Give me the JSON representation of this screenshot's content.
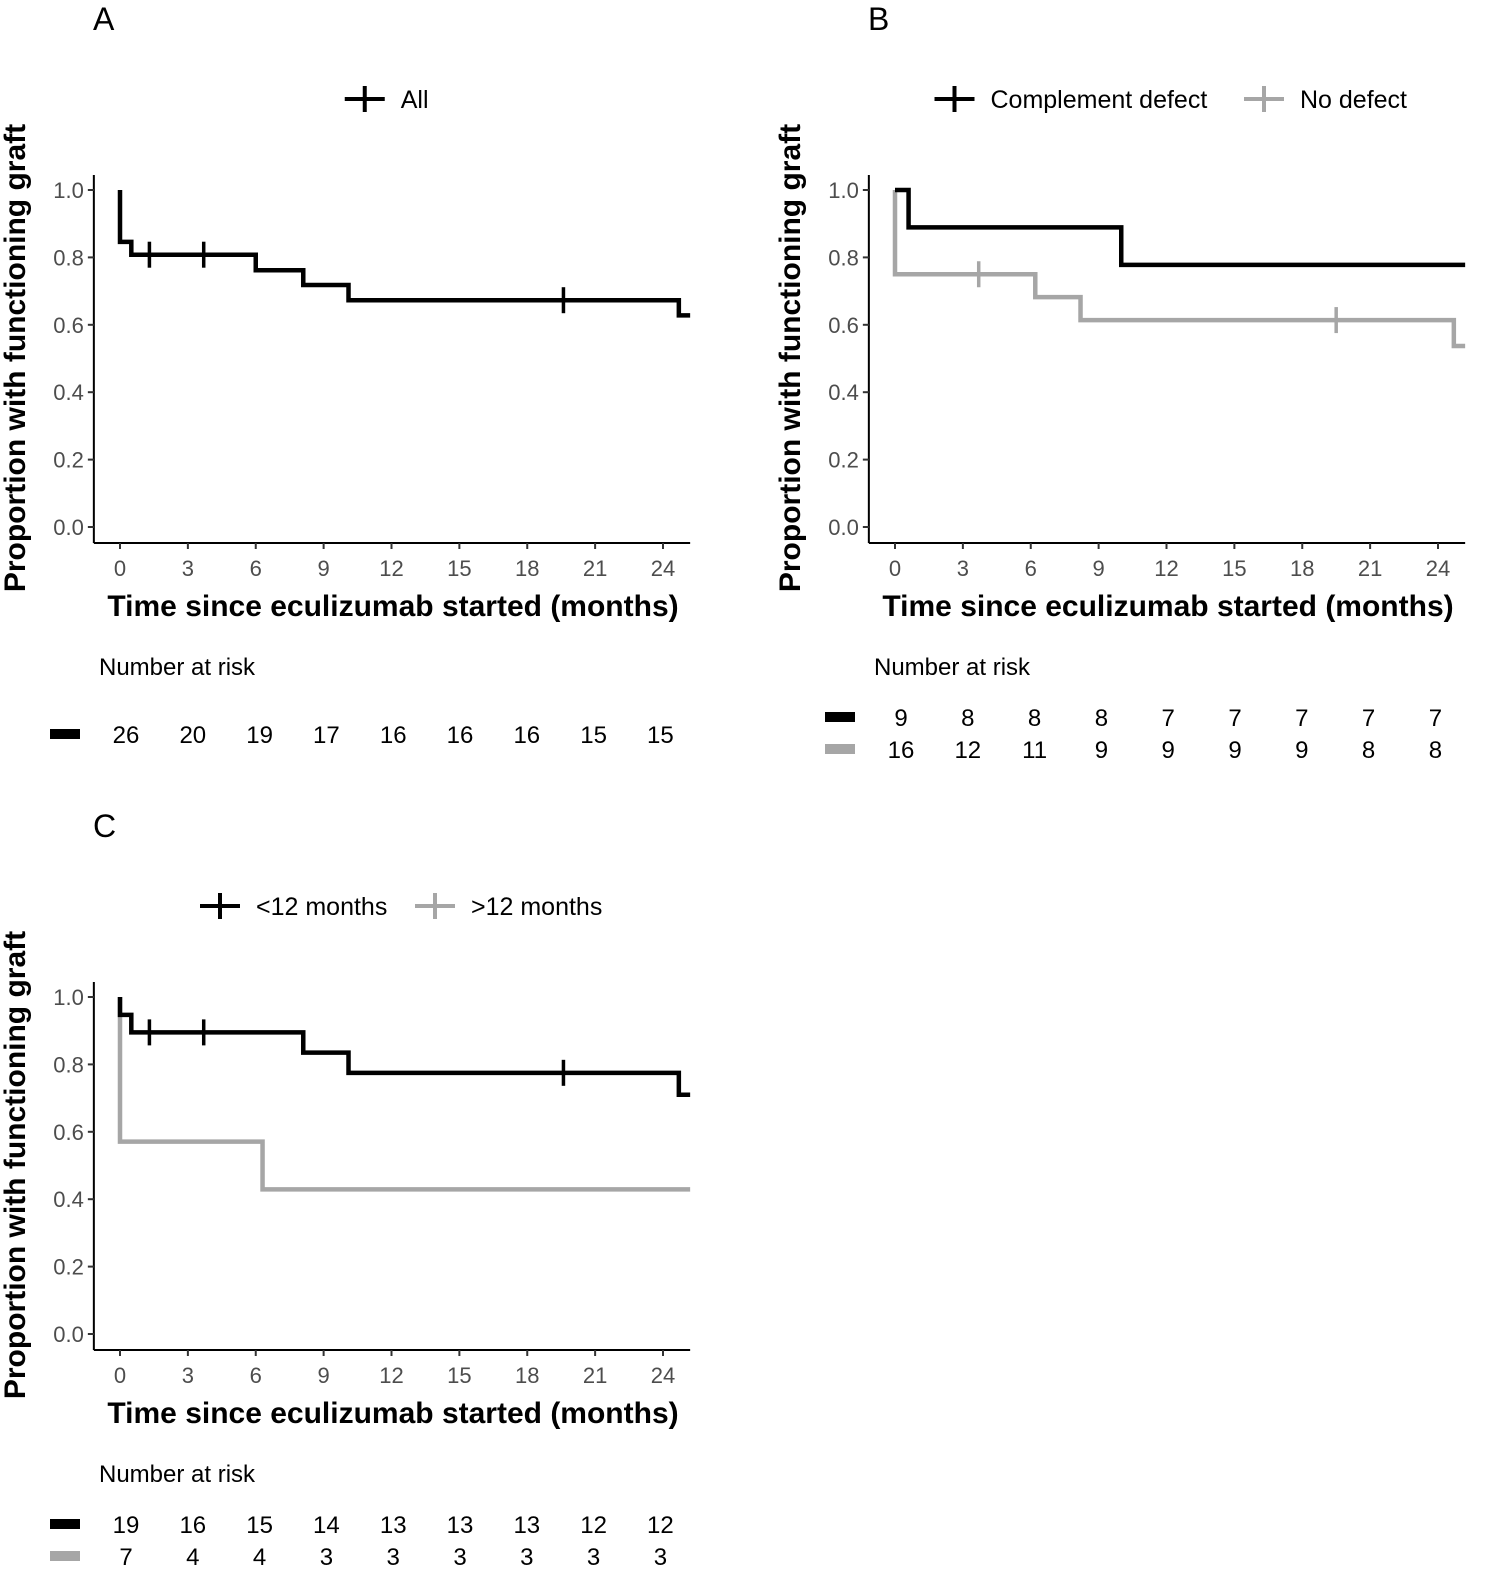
{
  "chart_data": [
    {
      "panel": "A",
      "type": "line",
      "subtype": "kaplan-meier step",
      "xlabel": "Time since eculizumab started (months)",
      "ylabel": "Proportion with functioning graft",
      "xticks": [
        "0",
        "3",
        "6",
        "9",
        "12",
        "15",
        "18",
        "21",
        "24"
      ],
      "yticks": [
        "0.0",
        "0.2",
        "0.4",
        "0.6",
        "0.8",
        "1.0"
      ],
      "xlim": [
        -1.2,
        25.2
      ],
      "ylim": [
        0,
        1
      ],
      "grid": false,
      "legend_position": "top",
      "risk_title": "Number at risk",
      "series": [
        {
          "name": "All",
          "color": "#000000",
          "steps": [
            [
              0,
              1.0
            ],
            [
              0,
              0.846
            ],
            [
              0.5,
              0.808
            ],
            [
              6.0,
              0.762
            ],
            [
              8.1,
              0.718
            ],
            [
              10.1,
              0.673
            ],
            [
              24.7,
              0.628
            ]
          ],
          "end": 25.2,
          "censored": [
            1.3,
            3.7,
            19.6
          ],
          "at_risk": [
            "26",
            "20",
            "19",
            "17",
            "16",
            "16",
            "16",
            "15",
            "15"
          ]
        }
      ]
    },
    {
      "panel": "B",
      "type": "line",
      "subtype": "kaplan-meier step",
      "xlabel": "Time since eculizumab started (months)",
      "ylabel": "Proportion with functioning graft",
      "xticks": [
        "0",
        "3",
        "6",
        "9",
        "12",
        "15",
        "18",
        "21",
        "24"
      ],
      "yticks": [
        "0.0",
        "0.2",
        "0.4",
        "0.6",
        "0.8",
        "1.0"
      ],
      "xlim": [
        -1.2,
        25.2
      ],
      "ylim": [
        0,
        1
      ],
      "grid": false,
      "legend_position": "top",
      "risk_title": "Number at risk",
      "series": [
        {
          "name": "Complement defect",
          "color": "#000000",
          "steps": [
            [
              0,
              1.0
            ],
            [
              0.6,
              0.889
            ],
            [
              10.0,
              0.778
            ]
          ],
          "end": 25.2,
          "censored": [],
          "at_risk": [
            "9",
            "8",
            "8",
            "8",
            "7",
            "7",
            "7",
            "7",
            "7"
          ]
        },
        {
          "name": "No defect",
          "color": "#a6a6a6",
          "steps": [
            [
              0,
              1.0
            ],
            [
              0,
              0.75
            ],
            [
              6.2,
              0.682
            ],
            [
              8.2,
              0.614
            ],
            [
              24.7,
              0.537
            ]
          ],
          "end": 25.2,
          "censored": [
            3.7,
            19.5
          ],
          "at_risk": [
            "16",
            "12",
            "11",
            "9",
            "9",
            "9",
            "9",
            "8",
            "8"
          ]
        }
      ]
    },
    {
      "panel": "C",
      "type": "line",
      "subtype": "kaplan-meier step",
      "xlabel": "Time since eculizumab started (months)",
      "ylabel": "Proportion with functioning graft",
      "xticks": [
        "0",
        "3",
        "6",
        "9",
        "12",
        "15",
        "18",
        "21",
        "24"
      ],
      "yticks": [
        "0.0",
        "0.2",
        "0.4",
        "0.6",
        "0.8",
        "1.0"
      ],
      "xlim": [
        -1.2,
        25.2
      ],
      "ylim": [
        0,
        1
      ],
      "grid": false,
      "legend_position": "top",
      "risk_title": "Number at risk",
      "series": [
        {
          "name": "<12 months",
          "color": "#000000",
          "steps": [
            [
              0,
              1.0
            ],
            [
              0,
              0.947
            ],
            [
              0.5,
              0.895
            ],
            [
              8.1,
              0.835
            ],
            [
              10.1,
              0.775
            ],
            [
              24.7,
              0.71
            ]
          ],
          "end": 25.2,
          "censored": [
            1.3,
            3.7,
            19.6
          ],
          "at_risk": [
            "19",
            "16",
            "15",
            "14",
            "13",
            "13",
            "13",
            "12",
            "12"
          ]
        },
        {
          "name": ">12 months",
          "color": "#a6a6a6",
          "steps": [
            [
              0,
              1.0
            ],
            [
              0,
              0.571
            ],
            [
              6.3,
              0.429
            ]
          ],
          "end": 25.2,
          "censored": [],
          "at_risk": [
            "7",
            "4",
            "4",
            "3",
            "3",
            "3",
            "3",
            "3",
            "3"
          ]
        }
      ]
    }
  ]
}
